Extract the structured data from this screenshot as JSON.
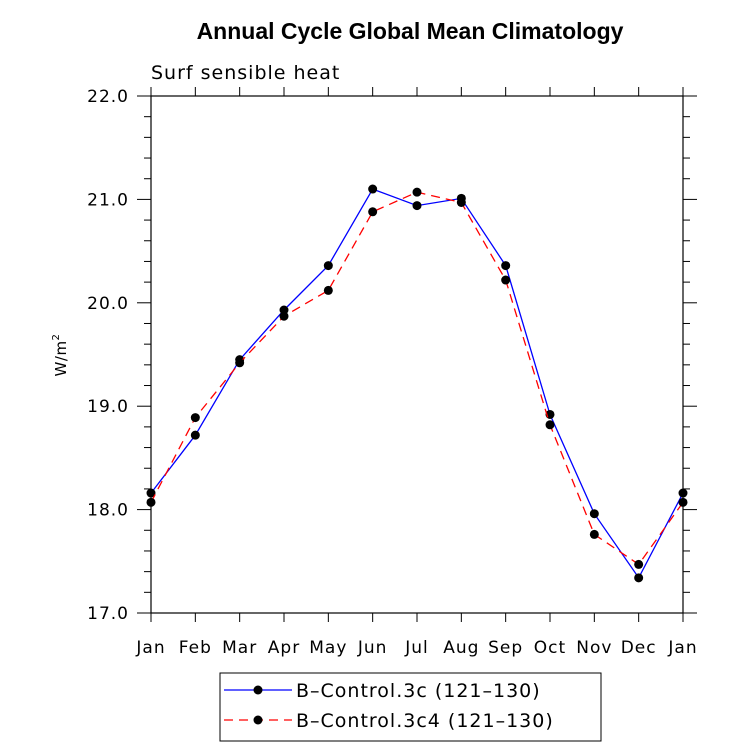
{
  "chart_data": {
    "type": "line",
    "title": "Annual Cycle Global Mean Climatology",
    "subtitle": "Surf sensible heat",
    "xlabel": "",
    "ylabel": "W/m",
    "ylabel_sup": "2",
    "categories": [
      "Jan",
      "Feb",
      "Mar",
      "Apr",
      "May",
      "Jun",
      "Jul",
      "Aug",
      "Sep",
      "Oct",
      "Nov",
      "Dec",
      "Jan"
    ],
    "ylim": [
      17.0,
      22.0
    ],
    "y_ticks": [
      "22.0",
      "21.0",
      "20.0",
      "19.0",
      "18.0",
      "17.0"
    ],
    "grid": false,
    "legend_position": "bottom-center",
    "series": [
      {
        "name": "B–Control.3c (121–130)",
        "color": "#0000ff",
        "style": "solid",
        "values": [
          18.16,
          18.72,
          19.45,
          19.93,
          20.36,
          21.1,
          20.94,
          21.01,
          20.36,
          18.92,
          17.96,
          17.34,
          18.16
        ]
      },
      {
        "name": "B–Control.3c4 (121–130)",
        "color": "#ff0000",
        "style": "dashed",
        "values": [
          18.07,
          18.89,
          19.42,
          19.87,
          20.12,
          20.88,
          21.07,
          20.97,
          20.22,
          18.82,
          17.76,
          17.47,
          18.07
        ]
      }
    ]
  }
}
